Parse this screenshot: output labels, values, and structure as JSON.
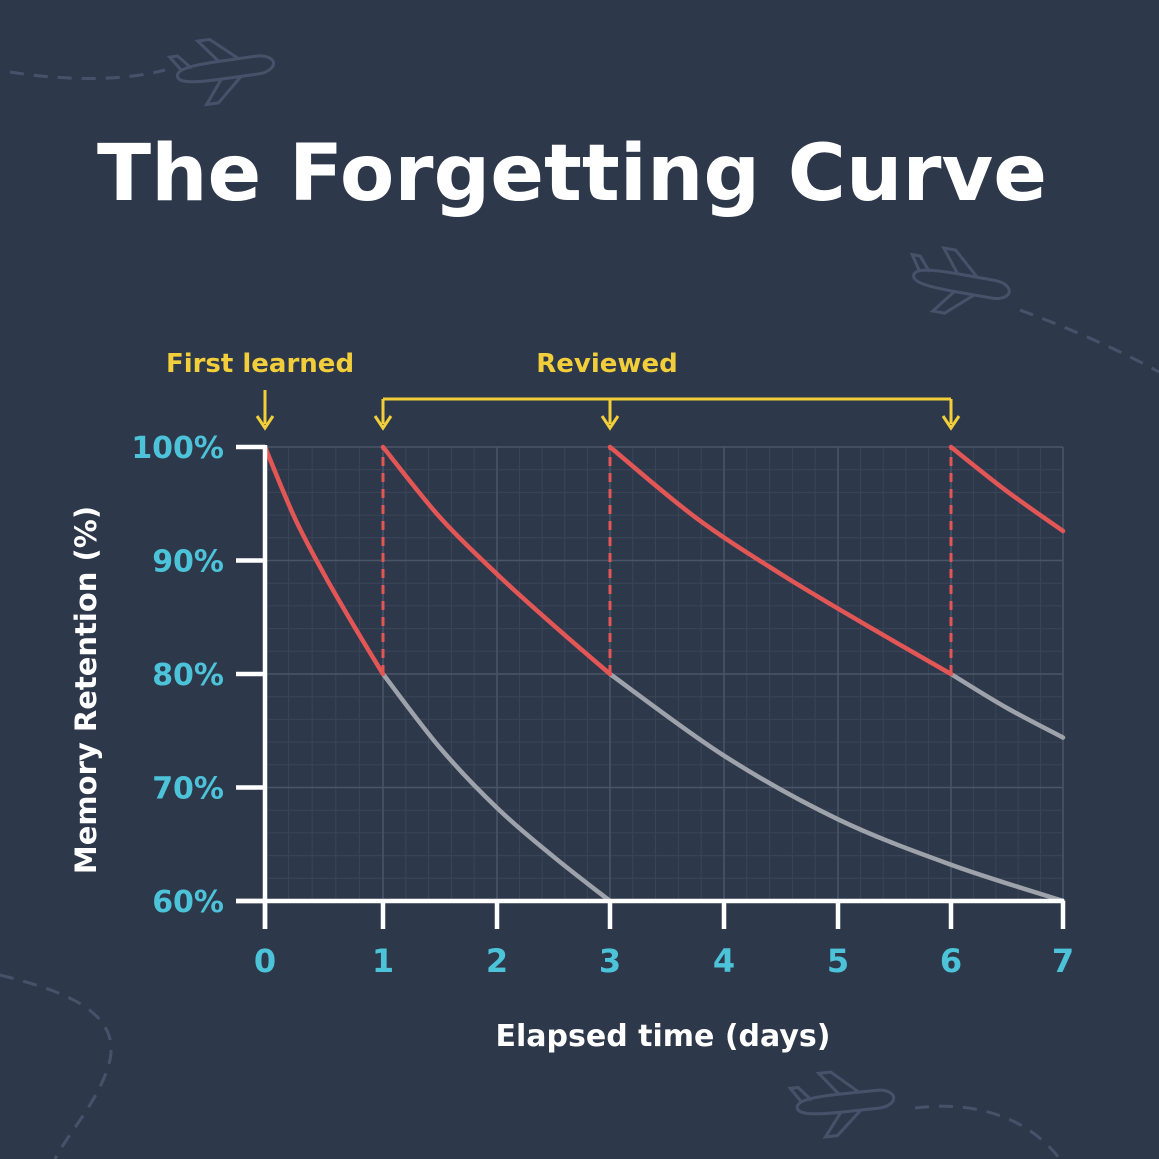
{
  "page": {
    "title": "The Forgetting Curve",
    "colors": {
      "background": "#2e384b",
      "title": "#ffffff",
      "annotation": "#f2cf3a",
      "tick": "#4cc3d9",
      "axis": "#ffffff",
      "review_curve": "#e25656",
      "forget_curve": "#9ea3ab",
      "grid_major": "#4a5568",
      "grid_minor": "#3b4558",
      "decoration": "#47526a"
    },
    "decorations": [
      "airplane-icon",
      "airplane-icon",
      "airplane-icon"
    ]
  },
  "chart_data": {
    "type": "line",
    "title": "The Forgetting Curve",
    "xlabel": "Elapsed time (days)",
    "ylabel": "Memory Retention (%)",
    "xlim": [
      0,
      7
    ],
    "ylim": [
      60,
      100
    ],
    "grid": true,
    "x_ticks": [
      {
        "value": 0,
        "label": "0"
      },
      {
        "value": 1,
        "label": "1"
      },
      {
        "value": 2,
        "label": "2"
      },
      {
        "value": 3,
        "label": "3"
      },
      {
        "value": 4,
        "label": "4"
      },
      {
        "value": 5,
        "label": "5"
      },
      {
        "value": 6,
        "label": "6"
      },
      {
        "value": 7,
        "label": "7"
      }
    ],
    "y_ticks": [
      {
        "value": 100,
        "label": "100%"
      },
      {
        "value": 90,
        "label": "90%"
      },
      {
        "value": 80,
        "label": "80%"
      },
      {
        "value": 70,
        "label": "70%"
      },
      {
        "value": 60,
        "label": "60%"
      }
    ],
    "annotations": {
      "first_learned": {
        "label": "First learned",
        "x": 0
      },
      "reviewed": {
        "label": "Reviewed",
        "x": [
          1,
          3,
          6
        ]
      }
    },
    "review_segments": [
      {
        "x": [
          0,
          0.25,
          0.5,
          0.75,
          1
        ],
        "y": [
          100,
          93.8,
          88.8,
          84.3,
          80
        ]
      },
      {
        "x": [
          1,
          1.5,
          2,
          2.5,
          3
        ],
        "y": [
          100,
          93.8,
          88.8,
          84.3,
          80
        ]
      },
      {
        "x": [
          3,
          3.75,
          4.5,
          5.25,
          6
        ],
        "y": [
          100,
          93.8,
          88.8,
          84.3,
          80
        ]
      },
      {
        "x": [
          6,
          6.5,
          7
        ],
        "y": [
          100,
          96.1,
          92.6
        ]
      }
    ],
    "forgetting_segments": [
      {
        "x": [
          1,
          1.5,
          2,
          2.5,
          3
        ],
        "y": [
          80,
          73.5,
          68.2,
          63.9,
          60
        ]
      },
      {
        "x": [
          3,
          4,
          5,
          6,
          7
        ],
        "y": [
          80,
          72.8,
          67.2,
          63.2,
          60
        ]
      },
      {
        "x": [
          6,
          6.5,
          7
        ],
        "y": [
          80,
          77,
          74.4
        ]
      }
    ],
    "review_markers_x": [
      1,
      3,
      6
    ]
  }
}
